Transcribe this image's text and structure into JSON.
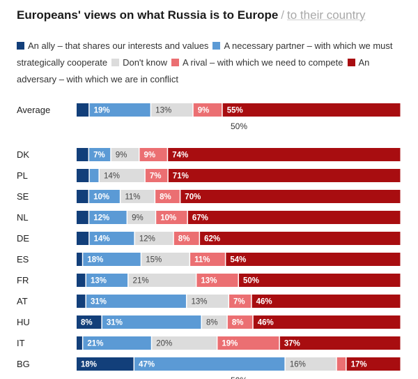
{
  "title": {
    "main": "Europeans' views on what Russia is to Europe",
    "separator": "/",
    "alternate": "to their country"
  },
  "legend": [
    {
      "label": "An ally – that shares our interests and values",
      "color": "#123f7a"
    },
    {
      "label": "A necessary partner – with which we must strategically cooperate",
      "color": "#5b9ad5"
    },
    {
      "label": "Don't know",
      "color": "#dcdcdc"
    },
    {
      "label": "A rival – with which we need to compete",
      "color": "#eb6f72"
    },
    {
      "label": "An adversary – with which we are in conflict",
      "color": "#a80d10"
    }
  ],
  "chart_data": {
    "type": "bar",
    "orientation": "horizontal",
    "stacked": "100%",
    "categories": [
      "Average",
      "DK",
      "PL",
      "SE",
      "NL",
      "DE",
      "ES",
      "FR",
      "AT",
      "HU",
      "IT",
      "BG"
    ],
    "series": [
      {
        "name": "An ally – that shares our interests and values",
        "color": "#123f7a",
        "values": [
          4,
          4,
          4,
          4,
          4,
          4,
          2,
          3,
          3,
          8,
          2,
          18
        ],
        "labels": [
          "",
          "",
          "",
          "",
          "",
          "",
          "",
          "",
          "",
          "8%",
          "",
          "18%"
        ]
      },
      {
        "name": "A necessary partner – with which we must strategically cooperate",
        "color": "#5b9ad5",
        "values": [
          19,
          7,
          3,
          10,
          12,
          14,
          18,
          13,
          31,
          31,
          21,
          47
        ],
        "labels": [
          "19%",
          "7%",
          "",
          "10%",
          "12%",
          "14%",
          "18%",
          "13%",
          "31%",
          "31%",
          "21%",
          "47%"
        ]
      },
      {
        "name": "Don't know",
        "color": "#dcdcdc",
        "values": [
          13,
          9,
          14,
          11,
          9,
          12,
          15,
          21,
          13,
          8,
          20,
          16
        ],
        "labels": [
          "13%",
          "9%",
          "14%",
          "11%",
          "9%",
          "12%",
          "15%",
          "21%",
          "13%",
          "8%",
          "20%",
          "16%"
        ]
      },
      {
        "name": "A rival – with which we need to compete",
        "color": "#eb6f72",
        "values": [
          9,
          9,
          7,
          8,
          10,
          8,
          11,
          13,
          7,
          8,
          19,
          3
        ],
        "labels": [
          "9%",
          "9%",
          "7%",
          "8%",
          "10%",
          "8%",
          "11%",
          "13%",
          "7%",
          "8%",
          "19%",
          ""
        ]
      },
      {
        "name": "An adversary – with which we are in conflict",
        "color": "#a80d10",
        "values": [
          55,
          74,
          71,
          70,
          67,
          62,
          54,
          50,
          46,
          46,
          37,
          17
        ],
        "labels": [
          "55%",
          "74%",
          "71%",
          "70%",
          "67%",
          "62%",
          "54%",
          "50%",
          "46%",
          "46%",
          "37%",
          "17%"
        ]
      }
    ],
    "reference_label": "50%",
    "xlim": [
      0,
      100
    ]
  }
}
